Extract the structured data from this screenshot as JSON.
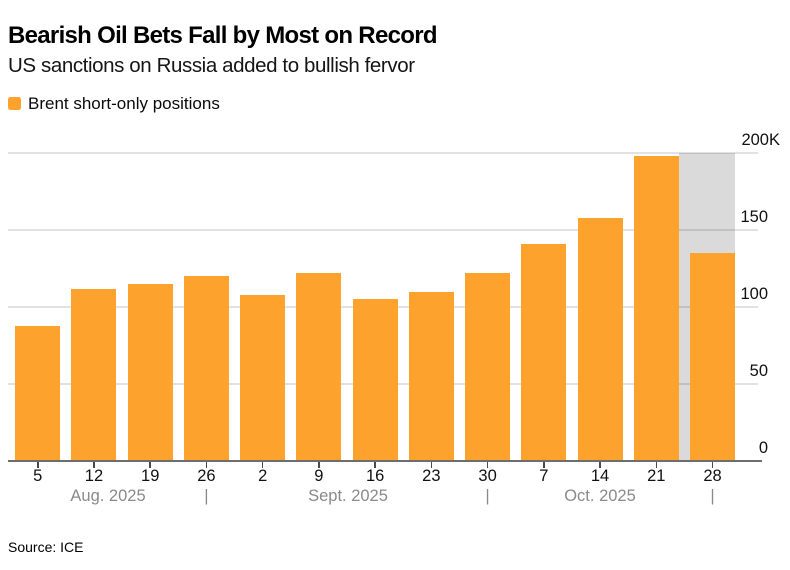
{
  "header": {
    "title": "Bearish Oil Bets Fall by Most on Record",
    "subtitle": "US sanctions on Russia added to bullish fervor"
  },
  "legend": {
    "label": "Brent short-only positions",
    "swatch_color": "#FDA22D"
  },
  "chart_data": {
    "type": "bar",
    "title": "Bearish Oil Bets Fall by Most on Record",
    "subtitle": "US sanctions on Russia added to bullish fervor",
    "categories": [
      "5",
      "12",
      "19",
      "26",
      "2",
      "9",
      "16",
      "23",
      "30",
      "7",
      "14",
      "21",
      "28"
    ],
    "series": [
      {
        "name": "Brent short-only positions",
        "values_thousands": [
          88,
          112,
          115,
          120,
          108,
          122,
          105,
          110,
          122,
          141,
          158,
          198,
          135
        ]
      }
    ],
    "month_groups": [
      {
        "label": "Aug. 2025",
        "last_category": "26"
      },
      {
        "label": "Sept. 2025",
        "last_category": "30"
      },
      {
        "label": "Oct. 2025",
        "last_category": "28"
      }
    ],
    "month_separator_glyph": "|",
    "y_ticks": [
      {
        "value": 200,
        "label": "200K"
      },
      {
        "value": 150,
        "label": "150"
      },
      {
        "value": 100,
        "label": "100"
      },
      {
        "value": 50,
        "label": "50"
      },
      {
        "value": 0,
        "label": "0"
      }
    ],
    "ylim": [
      0,
      200
    ],
    "unit": "K",
    "bar_color": "#FDA22D",
    "highlight_band": {
      "behind_category": "28",
      "color": "#DADADA"
    },
    "grid": true,
    "legend_position": "top-left"
  },
  "source": {
    "text": "Source: ICE"
  }
}
